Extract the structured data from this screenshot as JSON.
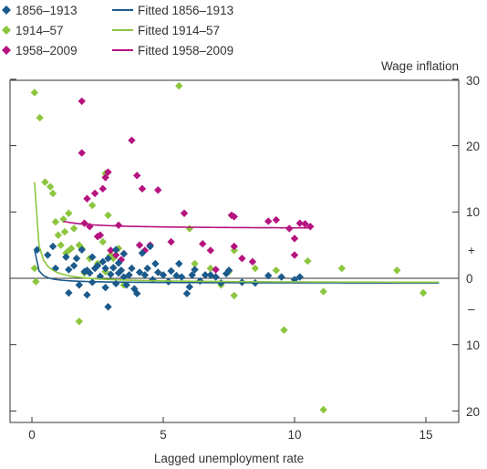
{
  "chart_data": {
    "type": "scatter",
    "xlabel": "Lagged unemployment rate",
    "ylabel": "Wage inflation",
    "xlim": [
      -1,
      16.5
    ],
    "ylim": [
      -22,
      30
    ],
    "x_ticks": [
      "0",
      "5",
      "10",
      "15"
    ],
    "y_ticks": [
      {
        "value": 30,
        "label": "30"
      },
      {
        "value": 20,
        "label": "20"
      },
      {
        "value": 10,
        "label": "10"
      },
      {
        "value": 0,
        "label": "0"
      },
      {
        "value": -10,
        "label": "10"
      },
      {
        "value": -20,
        "label": "20"
      }
    ],
    "sign_labels": {
      "plus": "+",
      "minus": "–"
    },
    "legend_placement": "top-left",
    "series": [
      {
        "name": "1856–1913",
        "color": "#1b5a8c",
        "marker": "diamond",
        "points": [
          [
            0.2,
            4.3
          ],
          [
            0.6,
            3.5
          ],
          [
            0.8,
            4.8
          ],
          [
            0.9,
            1.5
          ],
          [
            1.3,
            3.2
          ],
          [
            1.4,
            1.3
          ],
          [
            1.4,
            -2.2
          ],
          [
            1.6,
            1.9
          ],
          [
            1.7,
            3.0
          ],
          [
            1.8,
            -1.0
          ],
          [
            1.9,
            4.3
          ],
          [
            2.0,
            1.0
          ],
          [
            2.1,
            1.2
          ],
          [
            2.1,
            -2.5
          ],
          [
            2.2,
            0.8
          ],
          [
            2.3,
            3.2
          ],
          [
            2.3,
            -0.6
          ],
          [
            2.4,
            1.5
          ],
          [
            2.5,
            1.9
          ],
          [
            2.6,
            0.3
          ],
          [
            2.7,
            2.5
          ],
          [
            2.8,
            1.5
          ],
          [
            2.8,
            -1.4
          ],
          [
            2.9,
            3.0
          ],
          [
            2.9,
            -4.3
          ],
          [
            3.0,
            0.6
          ],
          [
            3.1,
            1.6
          ],
          [
            3.2,
            4.3
          ],
          [
            3.2,
            -0.8
          ],
          [
            3.3,
            0.8
          ],
          [
            3.3,
            2.3
          ],
          [
            3.4,
            1.2
          ],
          [
            3.5,
            0.2
          ],
          [
            3.5,
            3.7
          ],
          [
            3.6,
            -1.0
          ],
          [
            3.7,
            0.5
          ],
          [
            3.8,
            1.5
          ],
          [
            3.9,
            -1.6
          ],
          [
            4.0,
            -2.3
          ],
          [
            4.1,
            0.9
          ],
          [
            4.2,
            3.8
          ],
          [
            4.3,
            0.5
          ],
          [
            4.4,
            1.5
          ],
          [
            4.5,
            4.8
          ],
          [
            4.6,
            -0.2
          ],
          [
            4.7,
            2.2
          ],
          [
            4.8,
            0.9
          ],
          [
            5.0,
            0.5
          ],
          [
            5.2,
            -0.5
          ],
          [
            5.3,
            1.1
          ],
          [
            5.5,
            0.4
          ],
          [
            5.6,
            2.2
          ],
          [
            5.7,
            0.2
          ],
          [
            5.9,
            -2.3
          ],
          [
            6.0,
            -1.3
          ],
          [
            6.1,
            0.5
          ],
          [
            6.2,
            1.3
          ],
          [
            6.4,
            -0.4
          ],
          [
            6.6,
            0.5
          ],
          [
            6.8,
            0.5
          ],
          [
            7.0,
            0.2
          ],
          [
            7.2,
            -0.7
          ],
          [
            7.4,
            0.7
          ],
          [
            7.5,
            1.2
          ],
          [
            8.0,
            -0.6
          ],
          [
            8.5,
            -0.7
          ],
          [
            9.0,
            0.4
          ],
          [
            9.5,
            0.2
          ],
          [
            10.0,
            -0.2
          ],
          [
            10.2,
            0.2
          ]
        ]
      },
      {
        "name": "1914–57",
        "color": "#8cc63f",
        "marker": "diamond",
        "points": [
          [
            0.1,
            28.0
          ],
          [
            0.1,
            1.5
          ],
          [
            0.15,
            -0.5
          ],
          [
            0.3,
            24.2
          ],
          [
            0.5,
            14.5
          ],
          [
            0.7,
            13.8
          ],
          [
            0.8,
            12.8
          ],
          [
            0.9,
            8.5
          ],
          [
            1.0,
            6.5
          ],
          [
            1.1,
            5.0
          ],
          [
            1.2,
            8.9
          ],
          [
            1.25,
            7.0
          ],
          [
            1.3,
            3.8
          ],
          [
            1.35,
            4.0
          ],
          [
            1.4,
            9.8
          ],
          [
            1.5,
            4.5
          ],
          [
            1.6,
            7.5
          ],
          [
            1.7,
            3.0
          ],
          [
            1.8,
            5.0
          ],
          [
            1.8,
            -6.5
          ],
          [
            1.9,
            4.5
          ],
          [
            2.0,
            0.8
          ],
          [
            2.2,
            3.0
          ],
          [
            2.3,
            11.0
          ],
          [
            2.5,
            2.2
          ],
          [
            2.7,
            5.5
          ],
          [
            2.8,
            15.8
          ],
          [
            2.8,
            1.0
          ],
          [
            2.9,
            9.5
          ],
          [
            3.0,
            3.5
          ],
          [
            3.1,
            3.0
          ],
          [
            3.3,
            4.5
          ],
          [
            3.5,
            -1.0
          ],
          [
            5.6,
            29.0
          ],
          [
            6.0,
            7.5
          ],
          [
            6.2,
            2.2
          ],
          [
            6.8,
            1.5
          ],
          [
            7.2,
            -1.0
          ],
          [
            7.5,
            1.0
          ],
          [
            7.7,
            4.2
          ],
          [
            7.7,
            -2.6
          ],
          [
            8.5,
            1.5
          ],
          [
            9.3,
            1.2
          ],
          [
            9.6,
            -7.8
          ],
          [
            10.5,
            2.6
          ],
          [
            11.1,
            -19.8
          ],
          [
            11.8,
            1.5
          ],
          [
            11.1,
            -2.0
          ],
          [
            13.9,
            1.2
          ],
          [
            14.9,
            -2.2
          ]
        ]
      },
      {
        "name": "1958–2009",
        "color": "#b5137f",
        "marker": "diamond",
        "points": [
          [
            1.9,
            26.7
          ],
          [
            1.9,
            18.9
          ],
          [
            2.0,
            8.3
          ],
          [
            2.1,
            12.0
          ],
          [
            2.2,
            7.8
          ],
          [
            2.4,
            12.8
          ],
          [
            2.5,
            6.3
          ],
          [
            2.6,
            6.5
          ],
          [
            2.7,
            13.5
          ],
          [
            2.8,
            15.2
          ],
          [
            2.9,
            16.0
          ],
          [
            3.0,
            4.2
          ],
          [
            3.2,
            3.5
          ],
          [
            3.3,
            8.0
          ],
          [
            3.4,
            2.8
          ],
          [
            3.5,
            3.7
          ],
          [
            3.8,
            20.8
          ],
          [
            4.0,
            15.5
          ],
          [
            4.1,
            5.0
          ],
          [
            4.2,
            13.5
          ],
          [
            4.3,
            4.2
          ],
          [
            4.5,
            5.0
          ],
          [
            4.8,
            13.3
          ],
          [
            5.3,
            5.5
          ],
          [
            5.8,
            9.8
          ],
          [
            6.5,
            5.2
          ],
          [
            6.8,
            4.2
          ],
          [
            7.0,
            1.3
          ],
          [
            7.6,
            9.5
          ],
          [
            7.7,
            9.3
          ],
          [
            7.7,
            4.8
          ],
          [
            8.0,
            3.0
          ],
          [
            8.4,
            2.5
          ],
          [
            9.0,
            8.6
          ],
          [
            9.3,
            8.8
          ],
          [
            9.8,
            7.5
          ],
          [
            10.0,
            6.0
          ],
          [
            10.0,
            3.5
          ],
          [
            10.2,
            8.3
          ],
          [
            10.4,
            8.2
          ],
          [
            10.6,
            7.8
          ]
        ]
      }
    ],
    "fitted": [
      {
        "name": "Fitted 1856–1913",
        "color": "#1b5a8c",
        "x": [
          0.1,
          15.5
        ],
        "y_at_x": [
          4.3,
          -0.7
        ],
        "shape": "curve"
      },
      {
        "name": "Fitted 1914–57",
        "color": "#8cc63f",
        "x": [
          0.1,
          15.5
        ],
        "y_at_x": [
          14.5,
          -0.6
        ],
        "shape": "curve"
      },
      {
        "name": "Fitted 1958–2009",
        "color": "#b5137f",
        "x": [
          1.2,
          10.6
        ],
        "y_at_x": [
          8.6,
          7.6
        ],
        "shape": "curve"
      }
    ]
  }
}
